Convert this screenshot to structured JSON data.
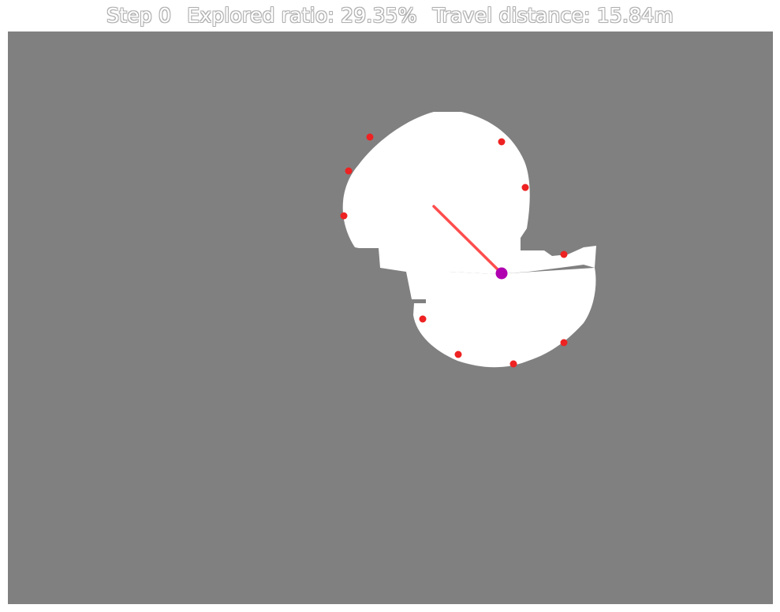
{
  "title": {
    "step": "Step 0",
    "explored_ratio": "Explored ratio: 29.35%",
    "travel_distance": "Travel distance: 15.84m"
  },
  "colors": {
    "unknown": "#808080",
    "free_space": "#ffffff",
    "frontier": "#ee2222",
    "path": "#ff4d4d",
    "agent": "#b000b0"
  }
}
